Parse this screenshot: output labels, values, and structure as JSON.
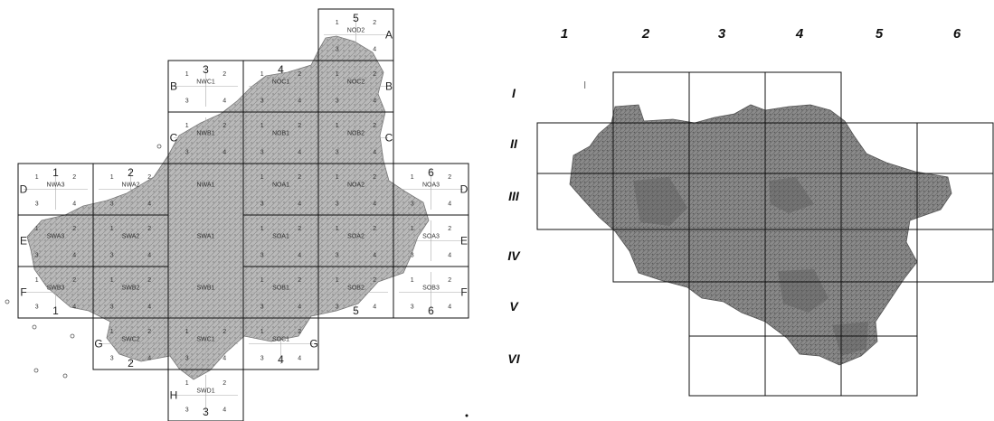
{
  "left_map": {
    "column_numbers": [
      {
        "text": "1",
        "col": 0,
        "pos": "top"
      },
      {
        "text": "2",
        "col": 1,
        "pos": "top"
      },
      {
        "text": "3",
        "col": 3,
        "pos": "top-mid"
      },
      {
        "text": "4",
        "col": 4,
        "pos": "top-mid"
      },
      {
        "text": "5",
        "col": 6,
        "pos": "top-high"
      },
      {
        "text": "6",
        "col": 7,
        "pos": "top"
      },
      {
        "text": "1",
        "col": 0,
        "pos": "bottom"
      },
      {
        "text": "2",
        "col": 2,
        "pos": "bottom-low"
      },
      {
        "text": "3",
        "col": 3,
        "pos": "bottom-lowest"
      },
      {
        "text": "4",
        "col": 5,
        "pos": "bottom-low2"
      },
      {
        "text": "5",
        "col": 6,
        "pos": "bottom"
      },
      {
        "text": "6",
        "col": 7,
        "pos": "bottom"
      }
    ],
    "row_letters": [
      {
        "text": "A",
        "row": "A",
        "side": "right"
      },
      {
        "text": "B",
        "row": "B",
        "side": "left"
      },
      {
        "text": "B",
        "row": "B",
        "side": "right"
      },
      {
        "text": "C",
        "row": "C",
        "side": "left"
      },
      {
        "text": "C",
        "row": "C",
        "side": "right"
      },
      {
        "text": "D",
        "row": "D",
        "side": "left"
      },
      {
        "text": "D",
        "row": "D",
        "side": "right"
      },
      {
        "text": "E",
        "row": "E",
        "side": "left"
      },
      {
        "text": "E",
        "row": "E",
        "side": "right"
      },
      {
        "text": "F",
        "row": "F",
        "side": "left"
      },
      {
        "text": "F",
        "row": "F",
        "side": "right"
      },
      {
        "text": "G",
        "row": "G",
        "side": "left"
      },
      {
        "text": "G",
        "row": "G",
        "side": "right"
      },
      {
        "text": "H",
        "row": "H",
        "side": "left"
      }
    ],
    "sheets": [
      {
        "name": "NOD2",
        "row": "A",
        "col": 6
      },
      {
        "name": "NWC1",
        "row": "B",
        "col": 3
      },
      {
        "name": "NOC1",
        "row": "B",
        "col": 5
      },
      {
        "name": "NOC2",
        "row": "B",
        "col": 6
      },
      {
        "name": "NWB1",
        "row": "C",
        "col": 3
      },
      {
        "name": "NOB1",
        "row": "C",
        "col": 5
      },
      {
        "name": "NOB2",
        "row": "C",
        "col": 6
      },
      {
        "name": "NWA3",
        "row": "D",
        "col": 0
      },
      {
        "name": "NWA2",
        "row": "D",
        "col": 1
      },
      {
        "name": "NWA1",
        "row": "D",
        "col": 3
      },
      {
        "name": "NOA1",
        "row": "D",
        "col": 5
      },
      {
        "name": "NOA2",
        "row": "D",
        "col": 6
      },
      {
        "name": "NOA3",
        "row": "D",
        "col": 7
      },
      {
        "name": "SWA3",
        "row": "E",
        "col": 0
      },
      {
        "name": "SWA2",
        "row": "E",
        "col": 2
      },
      {
        "name": "SWA1",
        "row": "E",
        "col": 3
      },
      {
        "name": "SOA1",
        "row": "E",
        "col": 5
      },
      {
        "name": "SOA2",
        "row": "E",
        "col": 6
      },
      {
        "name": "SOA3",
        "row": "E",
        "col": 7
      },
      {
        "name": "SWB3",
        "row": "F",
        "col": 0
      },
      {
        "name": "SWB2",
        "row": "F",
        "col": 2
      },
      {
        "name": "SWB1",
        "row": "F",
        "col": 3
      },
      {
        "name": "SOB1",
        "row": "F",
        "col": 5
      },
      {
        "name": "SOB2",
        "row": "F",
        "col": 6
      },
      {
        "name": "SOB3",
        "row": "F",
        "col": 7
      },
      {
        "name": "SWC2",
        "row": "G",
        "col": 2
      },
      {
        "name": "SWC1",
        "row": "G",
        "col": 3
      },
      {
        "name": "SOC1",
        "row": "G",
        "col": 5
      },
      {
        "name": "SWD1",
        "row": "H",
        "col": 3
      }
    ],
    "quadrant_numbers": [
      "1",
      "2",
      "3",
      "4"
    ]
  },
  "right_map": {
    "column_labels": [
      "1",
      "2",
      "3",
      "4",
      "5",
      "6"
    ],
    "row_labels": [
      "I",
      "II",
      "III",
      "IV",
      "V",
      "VI"
    ]
  },
  "colors": {
    "map_fill": "#9a9a9a",
    "map_dark": "#5c5c5c",
    "grid_line": "#111111"
  }
}
